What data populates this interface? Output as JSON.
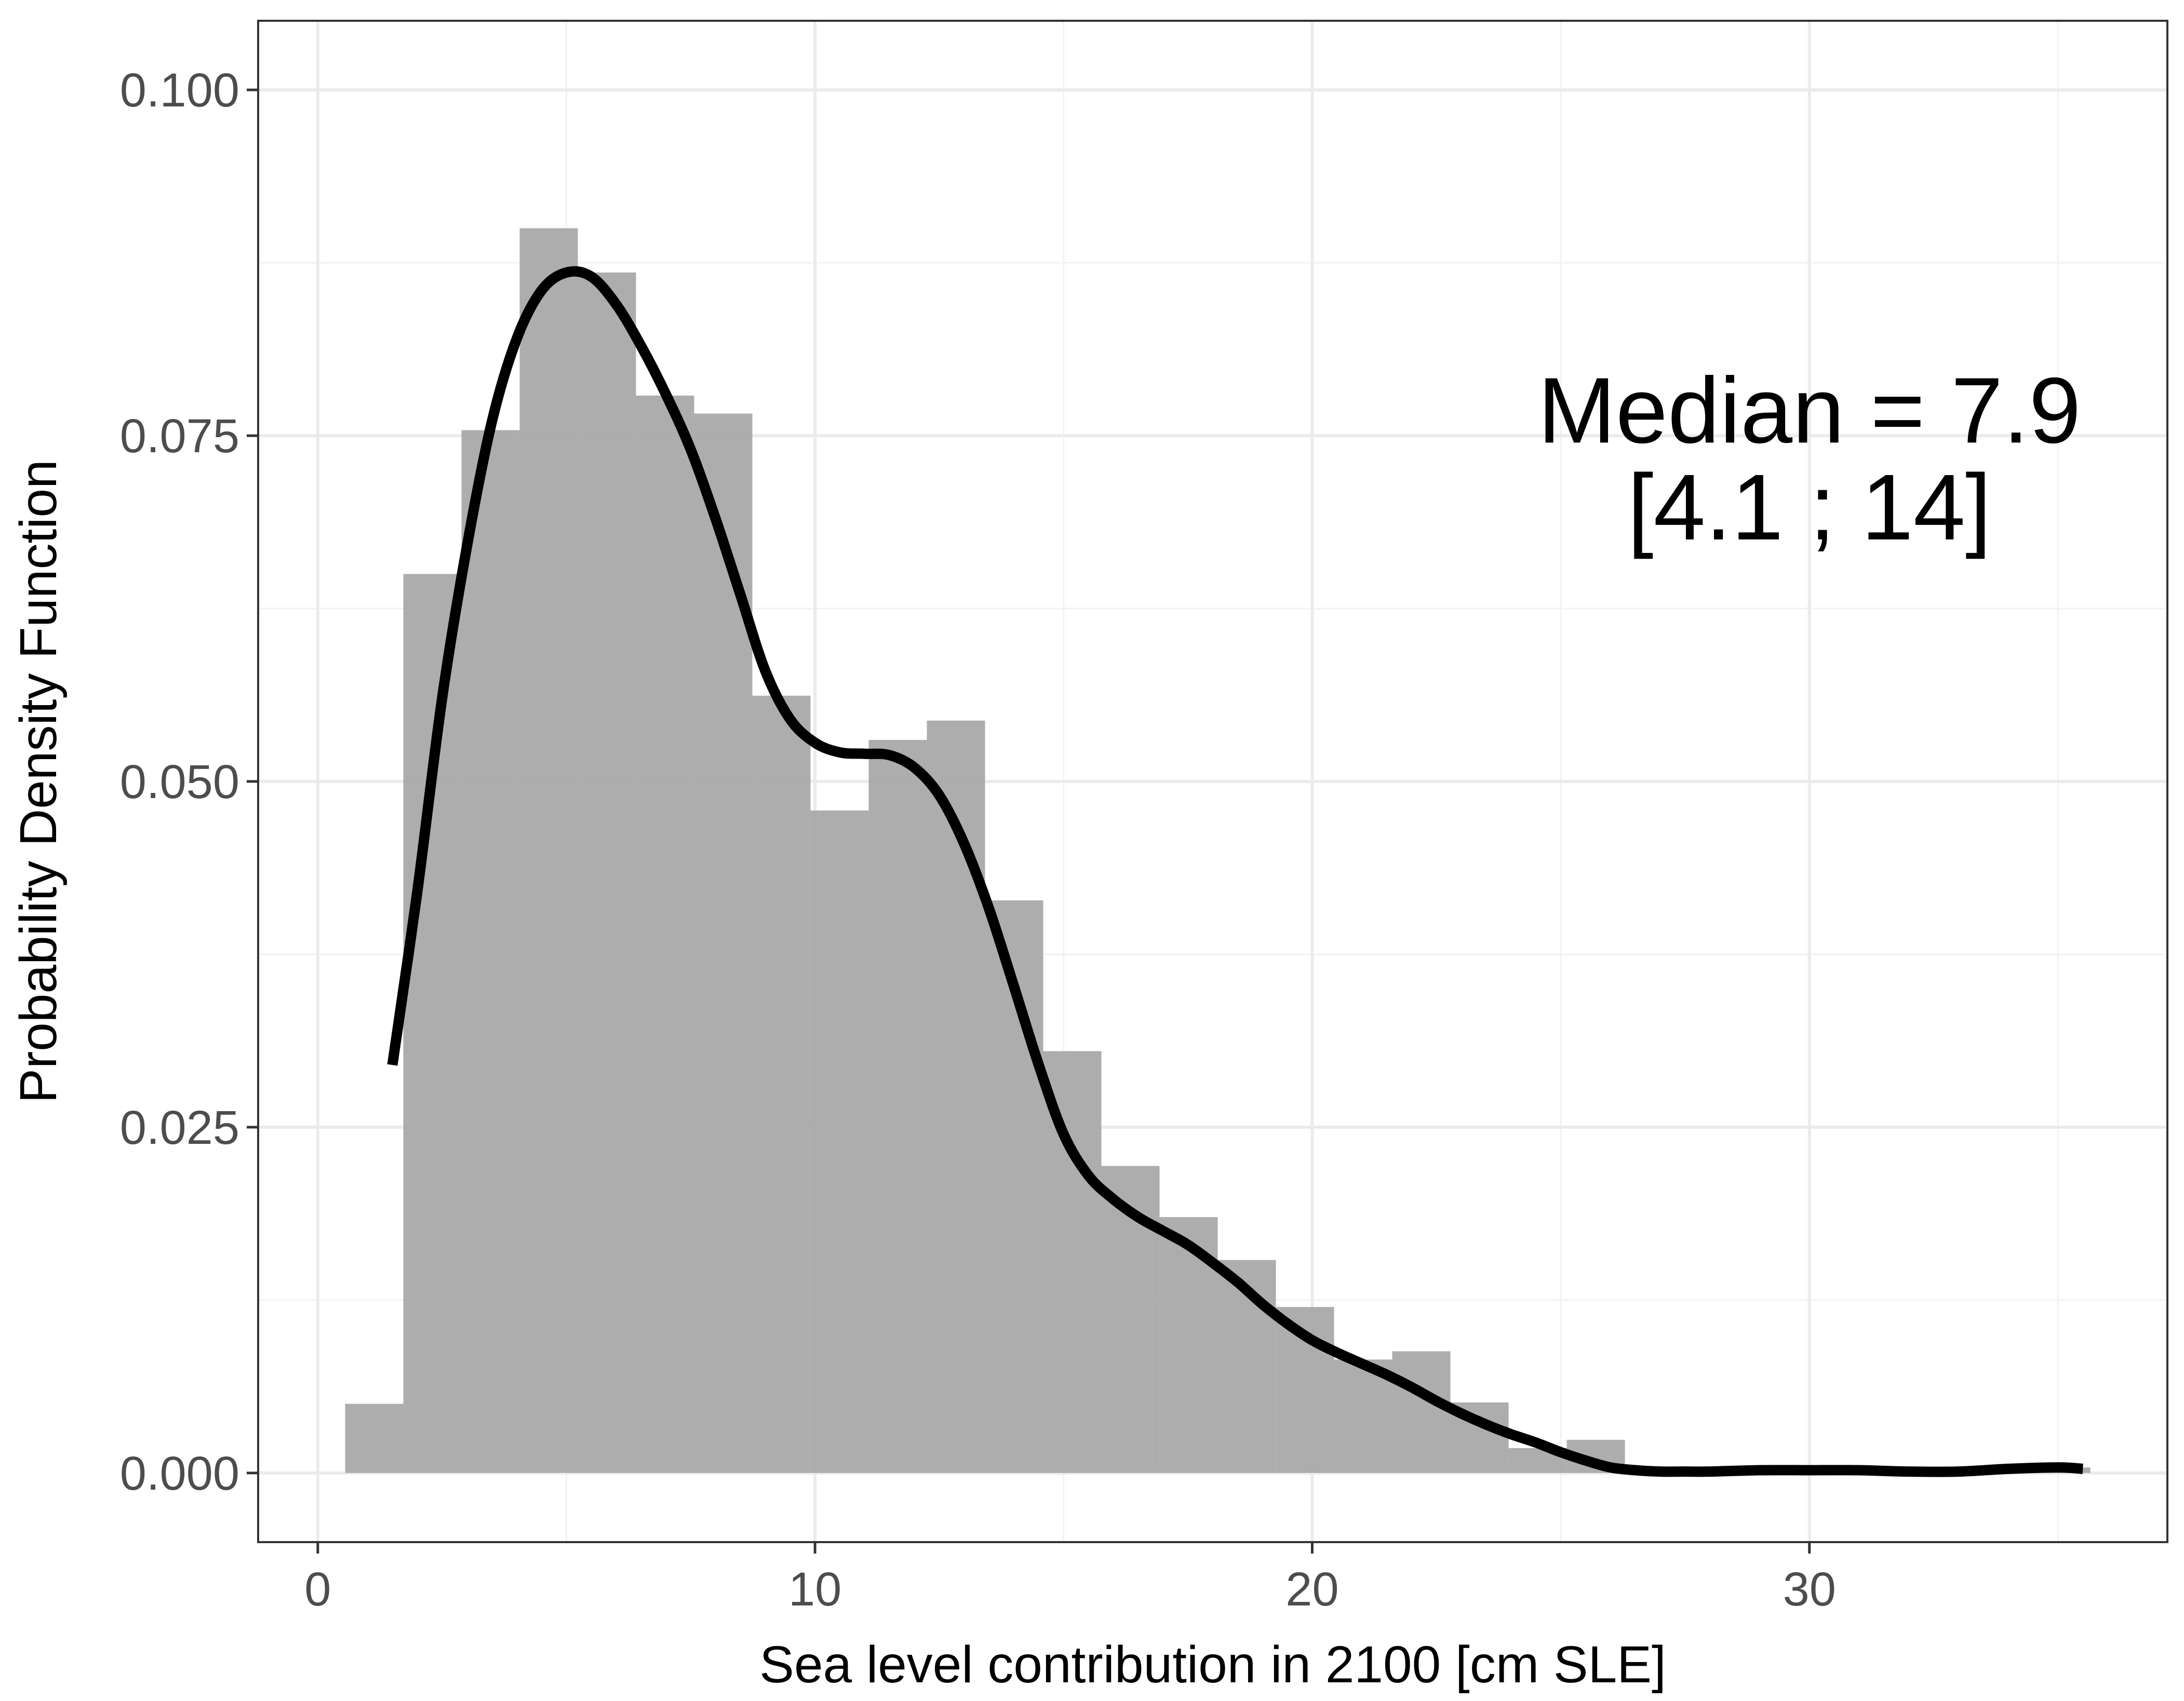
{
  "chart_data": {
    "type": "bar",
    "xlabel": "Sea level contribution in 2100 [cm SLE]",
    "ylabel": "Probability Density Function",
    "xlim": [
      -1.2,
      37.2
    ],
    "ylim": [
      -0.005,
      0.105
    ],
    "x_ticks": [
      0,
      10,
      20,
      30
    ],
    "x_tick_labels": [
      "0",
      "10",
      "20",
      "30"
    ],
    "y_ticks": [
      0,
      0.025,
      0.05,
      0.075,
      0.1
    ],
    "y_tick_labels": [
      "0.000",
      "0.025",
      "0.050",
      "0.075",
      "0.100"
    ],
    "x_minor": [
      5,
      15,
      25,
      35
    ],
    "y_minor": [
      0.0125,
      0.0375,
      0.0625,
      0.0875
    ],
    "grid": true,
    "legend": "none",
    "colors": {
      "bar": "#a9a9a9",
      "curve": "#000000",
      "grid": "#ebebeb",
      "panel_border": "#333333",
      "tick_text": "#4d4d4d"
    },
    "histogram": {
      "bin_edges": [
        0.55,
        1.72,
        2.89,
        4.06,
        5.23,
        6.4,
        7.57,
        8.74,
        9.91,
        11.08,
        12.25,
        13.42,
        14.59,
        15.76,
        16.93,
        18.1,
        19.27,
        20.44,
        21.61,
        22.78,
        23.95,
        25.12,
        26.29,
        27.46,
        28.63,
        29.8,
        30.97,
        32.14,
        33.31,
        34.48,
        35.65
      ],
      "density": [
        0.005,
        0.065,
        0.0754,
        0.09,
        0.0868,
        0.0779,
        0.0766,
        0.0562,
        0.0479,
        0.053,
        0.0544,
        0.0414,
        0.0305,
        0.0222,
        0.0185,
        0.0154,
        0.012,
        0.0082,
        0.0088,
        0.0051,
        0.0018,
        0.0024,
        0.0,
        0.0,
        0.0,
        0.0,
        0.0,
        0.0,
        0.0,
        0.0004
      ]
    },
    "density_curve": {
      "x": [
        1.5,
        2.0,
        2.5,
        3.0,
        3.5,
        4.0,
        4.5,
        5.0,
        5.5,
        6.0,
        6.5,
        7.0,
        7.5,
        8.0,
        8.5,
        9.0,
        9.5,
        10.0,
        10.5,
        11.0,
        11.5,
        12.0,
        12.5,
        13.0,
        13.5,
        14.0,
        14.5,
        15.0,
        15.5,
        16.0,
        16.5,
        17.0,
        17.5,
        18.0,
        18.5,
        19.0,
        19.5,
        20.0,
        20.5,
        21.0,
        21.5,
        22.0,
        22.5,
        23.0,
        23.5,
        24.0,
        24.5,
        25.0,
        25.5,
        26.0,
        26.5,
        27.0,
        27.5,
        28.0,
        29.0,
        30.0,
        31.0,
        32.0,
        33.0,
        34.0,
        35.0,
        35.5
      ],
      "y": [
        0.0295,
        0.042,
        0.056,
        0.067,
        0.076,
        0.082,
        0.0855,
        0.0868,
        0.0865,
        0.0845,
        0.0815,
        0.078,
        0.074,
        0.069,
        0.0635,
        0.058,
        0.0545,
        0.0528,
        0.0521,
        0.052,
        0.0519,
        0.051,
        0.049,
        0.0455,
        0.0408,
        0.0352,
        0.0295,
        0.0245,
        0.0215,
        0.0198,
        0.0185,
        0.0175,
        0.0165,
        0.0152,
        0.0138,
        0.0122,
        0.0108,
        0.0096,
        0.0087,
        0.0079,
        0.0071,
        0.0062,
        0.0052,
        0.0043,
        0.0035,
        0.0028,
        0.0022,
        0.0015,
        0.0009,
        0.0004,
        0.0002,
        0.0001,
        0.0001,
        0.0001,
        0.0002,
        0.0002,
        0.0002,
        0.0001,
        0.0001,
        0.0003,
        0.0004,
        0.0003
      ]
    },
    "annotation": {
      "line1": "Median = 7.9",
      "line2": "[4.1 ; 14]",
      "anchor_x": 30.0,
      "line1_y": 0.0745,
      "line2_y": 0.0675
    }
  }
}
